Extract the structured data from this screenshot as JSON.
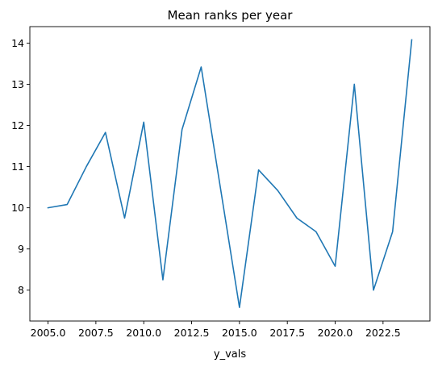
{
  "chart_data": {
    "type": "line",
    "title": "Mean ranks per year",
    "xlabel": "y_vals",
    "ylabel": "",
    "xlim": [
      2004.05,
      2024.95
    ],
    "ylim": [
      7.25,
      14.4
    ],
    "grid": false,
    "x_ticks": [
      2005.0,
      2007.5,
      2010.0,
      2012.5,
      2015.0,
      2017.5,
      2020.0,
      2022.5
    ],
    "x_tick_labels": [
      "2005.0",
      "2007.5",
      "2010.0",
      "2012.5",
      "2015.0",
      "2017.5",
      "2020.0",
      "2022.5"
    ],
    "y_ticks": [
      8,
      9,
      10,
      11,
      12,
      13,
      14
    ],
    "y_tick_labels": [
      "8",
      "9",
      "10",
      "11",
      "12",
      "13",
      "14"
    ],
    "series": [
      {
        "color": "#1f77b4",
        "x": [
          2005,
          2006,
          2007,
          2008,
          2009,
          2010,
          2011,
          2012,
          2013,
          2014,
          2015,
          2016,
          2017,
          2018,
          2019,
          2020,
          2021,
          2022,
          2023,
          2024
        ],
        "values": [
          10.0,
          10.08,
          11.0,
          11.83,
          9.75,
          12.08,
          8.25,
          11.9,
          13.42,
          10.5,
          7.58,
          10.92,
          10.42,
          9.75,
          9.42,
          8.58,
          13.0,
          8.0,
          9.42,
          14.08
        ]
      }
    ]
  }
}
